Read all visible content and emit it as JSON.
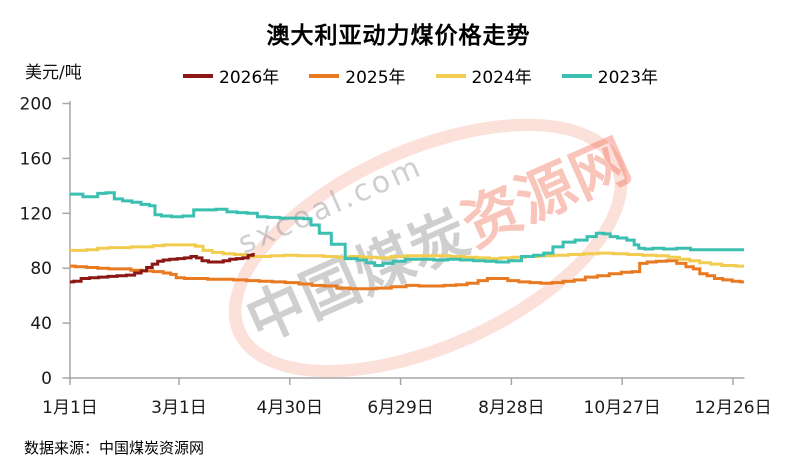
{
  "page": {
    "title": "澳大利亚动力煤价格走势",
    "unit_label": "美元/吨",
    "source": "数据来源：中国煤炭资源网"
  },
  "watermark": {
    "small_text": "sxcoal.com",
    "cn_gray": "中国煤炭",
    "cn_red": "资源网"
  },
  "colors": {
    "axis": "#a6a6a6",
    "tick_text": "#1a1a1a",
    "title_text": "#000000"
  },
  "chart_data": {
    "type": "line",
    "title": "澳大利亚动力煤价格走势",
    "xlabel": "",
    "ylabel": "美元/吨",
    "ylim": [
      0,
      200
    ],
    "y_ticks": [
      0,
      40,
      80,
      120,
      160,
      200
    ],
    "x_unit": "day-of-year",
    "x_ticks": [
      {
        "label": "1月1日",
        "day": 0
      },
      {
        "label": "3月1日",
        "day": 59
      },
      {
        "label": "4月30日",
        "day": 119
      },
      {
        "label": "6月29日",
        "day": 179
      },
      {
        "label": "8月28日",
        "day": 239
      },
      {
        "label": "10月27日",
        "day": 299
      },
      {
        "label": "12月26日",
        "day": 359
      }
    ],
    "grid": false,
    "legend_position": "top",
    "series": [
      {
        "name": "2026年",
        "color": "#8B1717",
        "points": [
          [
            0,
            70
          ],
          [
            4,
            70.5
          ],
          [
            8,
            72.5
          ],
          [
            13,
            73
          ],
          [
            18,
            73.5
          ],
          [
            23,
            74
          ],
          [
            28,
            74.5
          ],
          [
            33,
            75
          ],
          [
            37,
            76.5
          ],
          [
            40,
            78
          ],
          [
            43,
            80.5
          ],
          [
            46,
            83
          ],
          [
            49,
            85
          ],
          [
            52,
            86
          ],
          [
            56,
            86.5
          ],
          [
            60,
            87
          ],
          [
            64,
            87.5
          ],
          [
            67,
            88.5
          ],
          [
            70,
            87.5
          ],
          [
            73,
            85.5
          ],
          [
            77,
            84.5
          ],
          [
            81,
            84.5
          ],
          [
            85,
            85.5
          ],
          [
            88,
            86.5
          ],
          [
            92,
            87
          ],
          [
            95,
            87.5
          ],
          [
            98,
            89.5
          ],
          [
            100,
            90
          ]
        ]
      },
      {
        "name": "2025年",
        "color": "#E87A22",
        "points": [
          [
            0,
            81.5
          ],
          [
            6,
            81
          ],
          [
            12,
            80.5
          ],
          [
            18,
            80
          ],
          [
            24,
            79.5
          ],
          [
            30,
            79.5
          ],
          [
            36,
            78.5
          ],
          [
            42,
            78
          ],
          [
            48,
            77.5
          ],
          [
            53,
            76.5
          ],
          [
            56,
            75.5
          ],
          [
            59,
            73
          ],
          [
            65,
            72.5
          ],
          [
            71,
            72.5
          ],
          [
            78,
            72
          ],
          [
            85,
            72
          ],
          [
            92,
            71.5
          ],
          [
            99,
            71
          ],
          [
            106,
            70.5
          ],
          [
            113,
            70
          ],
          [
            120,
            69.5
          ],
          [
            128,
            68.5
          ],
          [
            134,
            67.5
          ],
          [
            141,
            67
          ],
          [
            148,
            65.5
          ],
          [
            155,
            65
          ],
          [
            162,
            65
          ],
          [
            170,
            65.5
          ],
          [
            178,
            66.5
          ],
          [
            186,
            67.5
          ],
          [
            192,
            67
          ],
          [
            199,
            67
          ],
          [
            206,
            67.5
          ],
          [
            212,
            68
          ],
          [
            218,
            69
          ],
          [
            224,
            71
          ],
          [
            228,
            72.5
          ],
          [
            234,
            72.5
          ],
          [
            240,
            71
          ],
          [
            246,
            70
          ],
          [
            252,
            69.5
          ],
          [
            258,
            69
          ],
          [
            264,
            69.5
          ],
          [
            270,
            70.5
          ],
          [
            276,
            71.5
          ],
          [
            282,
            73.5
          ],
          [
            289,
            74.5
          ],
          [
            295,
            76
          ],
          [
            302,
            77
          ],
          [
            307,
            77.5
          ],
          [
            310,
            83.5
          ],
          [
            315,
            84.5
          ],
          [
            320,
            85
          ],
          [
            326,
            85.5
          ],
          [
            331,
            83.5
          ],
          [
            336,
            81
          ],
          [
            339,
            79.5
          ],
          [
            343,
            76
          ],
          [
            347,
            74.5
          ],
          [
            351,
            72.5
          ],
          [
            356,
            71.5
          ],
          [
            361,
            70.5
          ],
          [
            365,
            70
          ]
        ]
      },
      {
        "name": "2024年",
        "color": "#F2CC4E",
        "points": [
          [
            0,
            93
          ],
          [
            6,
            93
          ],
          [
            12,
            93.5
          ],
          [
            18,
            94.5
          ],
          [
            24,
            95
          ],
          [
            30,
            95
          ],
          [
            36,
            95.5
          ],
          [
            42,
            95.5
          ],
          [
            48,
            96.5
          ],
          [
            54,
            97
          ],
          [
            60,
            97
          ],
          [
            66,
            97
          ],
          [
            70,
            96
          ],
          [
            74,
            93
          ],
          [
            80,
            91.5
          ],
          [
            86,
            90.5
          ],
          [
            92,
            90
          ],
          [
            98,
            88.5
          ],
          [
            105,
            88.5
          ],
          [
            112,
            89
          ],
          [
            120,
            89.5
          ],
          [
            127,
            89
          ],
          [
            134,
            89
          ],
          [
            141,
            88.5
          ],
          [
            148,
            88
          ],
          [
            155,
            88.5
          ],
          [
            162,
            88
          ],
          [
            170,
            87.5
          ],
          [
            178,
            88.5
          ],
          [
            186,
            89
          ],
          [
            194,
            89
          ],
          [
            202,
            89
          ],
          [
            210,
            88.5
          ],
          [
            217,
            88
          ],
          [
            224,
            87.5
          ],
          [
            230,
            87
          ],
          [
            236,
            87.5
          ],
          [
            243,
            88
          ],
          [
            250,
            88.5
          ],
          [
            258,
            89
          ],
          [
            266,
            89.5
          ],
          [
            274,
            90
          ],
          [
            282,
            90.5
          ],
          [
            290,
            91
          ],
          [
            298,
            90.5
          ],
          [
            306,
            90
          ],
          [
            314,
            89.5
          ],
          [
            321,
            89
          ],
          [
            327,
            88
          ],
          [
            333,
            86.5
          ],
          [
            338,
            85.5
          ],
          [
            344,
            84
          ],
          [
            350,
            83
          ],
          [
            356,
            82
          ],
          [
            365,
            81.5
          ]
        ]
      },
      {
        "name": "2023年",
        "color": "#3ABFB1",
        "points": [
          [
            0,
            134
          ],
          [
            5,
            134
          ],
          [
            9,
            132
          ],
          [
            13,
            132
          ],
          [
            17,
            134.5
          ],
          [
            22,
            135
          ],
          [
            26,
            130.5
          ],
          [
            31,
            129
          ],
          [
            36,
            128
          ],
          [
            41,
            126.5
          ],
          [
            45,
            125.5
          ],
          [
            47,
            119
          ],
          [
            52,
            118
          ],
          [
            58,
            117.5
          ],
          [
            64,
            118
          ],
          [
            70,
            122.5
          ],
          [
            76,
            122.5
          ],
          [
            82,
            123
          ],
          [
            88,
            121
          ],
          [
            93,
            120.5
          ],
          [
            99,
            120
          ],
          [
            104,
            117.5
          ],
          [
            110,
            117
          ],
          [
            117,
            116.5
          ],
          [
            124,
            116.5
          ],
          [
            129,
            116
          ],
          [
            132,
            111.5
          ],
          [
            138,
            105.5
          ],
          [
            145,
            97.5
          ],
          [
            153,
            87
          ],
          [
            158,
            86
          ],
          [
            163,
            84
          ],
          [
            167,
            82
          ],
          [
            172,
            83.5
          ],
          [
            178,
            85
          ],
          [
            185,
            86.5
          ],
          [
            193,
            86.5
          ],
          [
            201,
            86
          ],
          [
            208,
            86.5
          ],
          [
            215,
            86
          ],
          [
            222,
            85.5
          ],
          [
            228,
            85
          ],
          [
            234,
            84.5
          ],
          [
            241,
            85.5
          ],
          [
            248,
            88.5
          ],
          [
            254,
            89.5
          ],
          [
            259,
            91
          ],
          [
            264,
            95.5
          ],
          [
            270,
            99
          ],
          [
            277,
            100.5
          ],
          [
            283,
            103
          ],
          [
            287,
            105.5
          ],
          [
            291,
            105
          ],
          [
            294,
            103
          ],
          [
            299,
            102
          ],
          [
            304,
            100.5
          ],
          [
            307,
            97
          ],
          [
            309,
            94.5
          ],
          [
            313,
            94
          ],
          [
            318,
            94.5
          ],
          [
            325,
            94
          ],
          [
            332,
            94.5
          ],
          [
            340,
            93.5
          ],
          [
            348,
            93.5
          ],
          [
            356,
            93.5
          ],
          [
            365,
            93.5
          ]
        ]
      }
    ]
  }
}
